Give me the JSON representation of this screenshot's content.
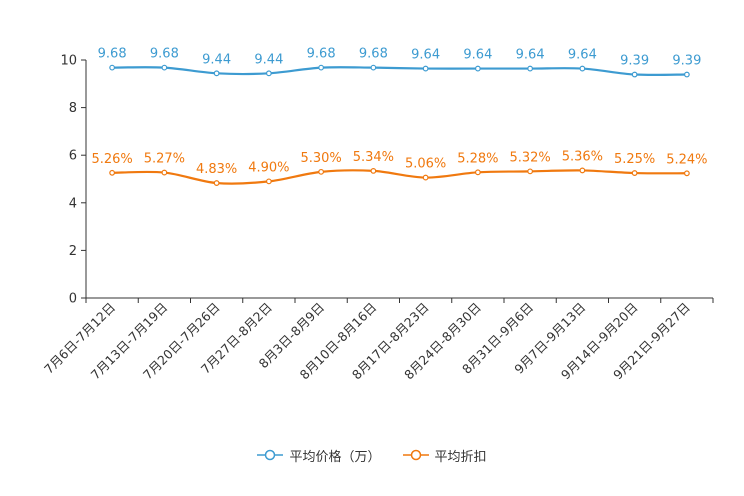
{
  "chart_data": {
    "type": "line",
    "categories": [
      "7月6日-7月12日",
      "7月13日-7月19日",
      "7月20日-7月26日",
      "7月27日-8月2日",
      "8月3日-8月9日",
      "8月10日-8月16日",
      "8月17日-8月23日",
      "8月24日-8月30日",
      "8月31日-9月6日",
      "9月7日-9月13日",
      "9月14日-9月20日",
      "9月21日-9月27日"
    ],
    "ylim": [
      0,
      10
    ],
    "yticks": [
      "0",
      "2",
      "4",
      "6",
      "8",
      "10"
    ],
    "series": [
      {
        "name": "平均价格（万）",
        "color": "#3d9bd1",
        "values": [
          9.68,
          9.68,
          9.44,
          9.44,
          9.68,
          9.68,
          9.64,
          9.64,
          9.64,
          9.64,
          9.39,
          9.39
        ],
        "labels": [
          "9.68",
          "9.68",
          "9.44",
          "9.44",
          "9.68",
          "9.68",
          "9.64",
          "9.64",
          "9.64",
          "9.64",
          "9.39",
          "9.39"
        ]
      },
      {
        "name": "平均折扣",
        "color": "#f0790f",
        "values": [
          5.26,
          5.27,
          4.83,
          4.9,
          5.3,
          5.34,
          5.06,
          5.28,
          5.32,
          5.36,
          5.25,
          5.24
        ],
        "labels": [
          "5.26%",
          "5.27%",
          "4.83%",
          "4.90%",
          "5.30%",
          "5.34%",
          "5.06%",
          "5.28%",
          "5.32%",
          "5.36%",
          "5.25%",
          "5.24%"
        ]
      }
    ],
    "legend_position": "bottom"
  }
}
